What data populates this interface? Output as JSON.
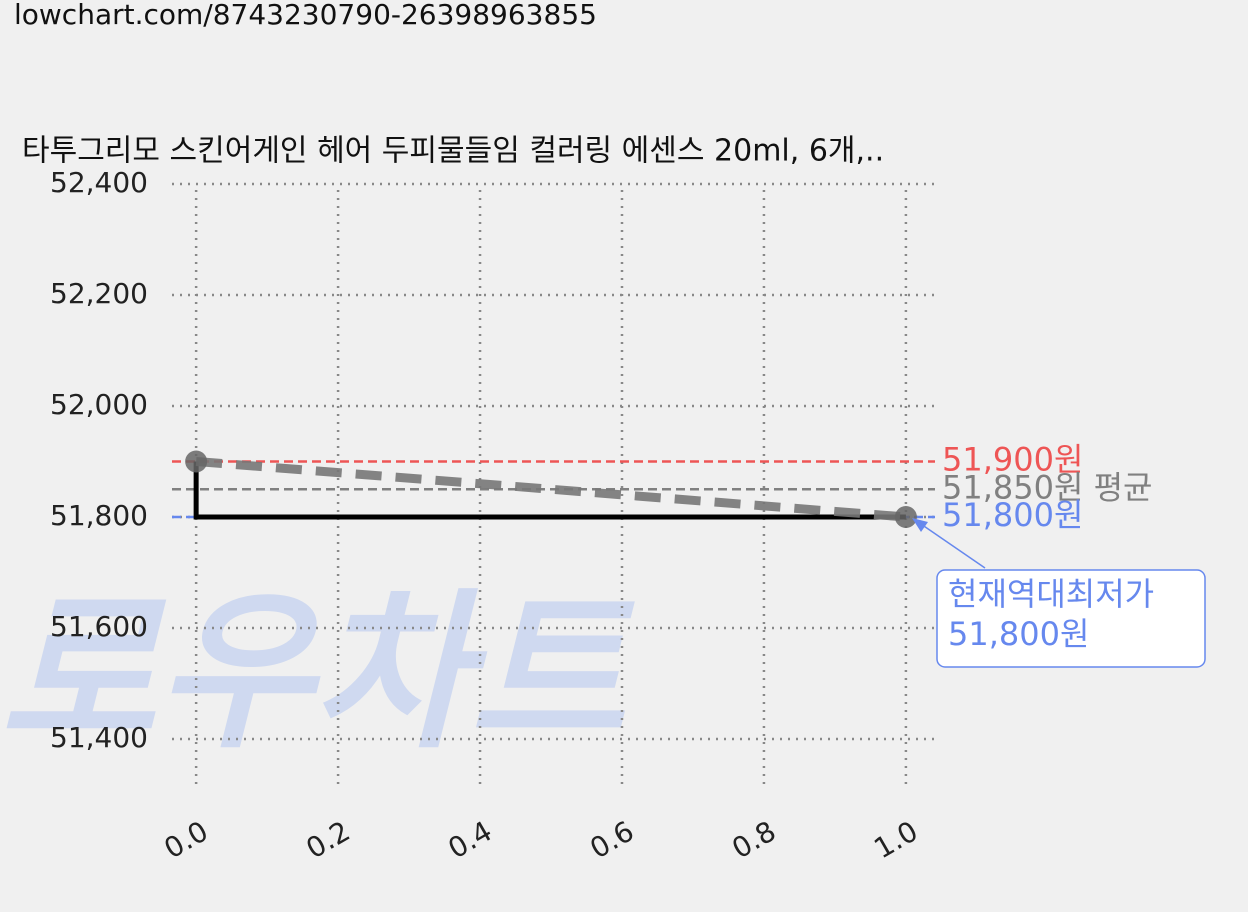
{
  "url": "lowchart.com/8743230790-26398963855",
  "chart_data": {
    "type": "line",
    "title": "타투그리모 스킨어게인 헤어 두피물들임 컬러링 에센스 20ml, 6개,..",
    "watermark": "로우차트",
    "xlim": [
      -0.034,
      1.041
    ],
    "xticks": [
      {
        "value": 0,
        "label": "0.0"
      },
      {
        "value": 0.2,
        "label": "0.2"
      },
      {
        "value": 0.4,
        "label": "0.4"
      },
      {
        "value": 0.6,
        "label": "0.6"
      },
      {
        "value": 0.8,
        "label": "0.8"
      },
      {
        "value": 1,
        "label": "1.0"
      }
    ],
    "ylim": [
      51300,
      52400
    ],
    "yticks": [
      {
        "value": 51400,
        "label": "51,400"
      },
      {
        "value": 51600,
        "label": "51,600"
      },
      {
        "value": 51800,
        "label": "51,800"
      },
      {
        "value": 52000,
        "label": "52,000"
      },
      {
        "value": 52200,
        "label": "52,200"
      },
      {
        "value": 52400,
        "label": "52,400"
      }
    ],
    "grid": true,
    "series": [
      {
        "color": "#000000",
        "x": [
          0,
          0,
          1
        ],
        "values": [
          51900,
          51800,
          51800
        ]
      },
      {
        "color": "#777777",
        "dashed": true,
        "marker": true,
        "x": [
          0,
          1
        ],
        "values": [
          51900,
          51800
        ]
      }
    ],
    "reference_lines": [
      {
        "value": 51900,
        "label": "51,900원",
        "color": "#ee5555"
      },
      {
        "value": 51850,
        "label": "51,850원 평균",
        "color": "#808080"
      },
      {
        "value": 51800,
        "label": "51,800원",
        "color": "#6688ee"
      }
    ],
    "annotation": {
      "lines": [
        "현재역대최저가",
        "51,800원"
      ],
      "color": "#6688ee"
    }
  }
}
